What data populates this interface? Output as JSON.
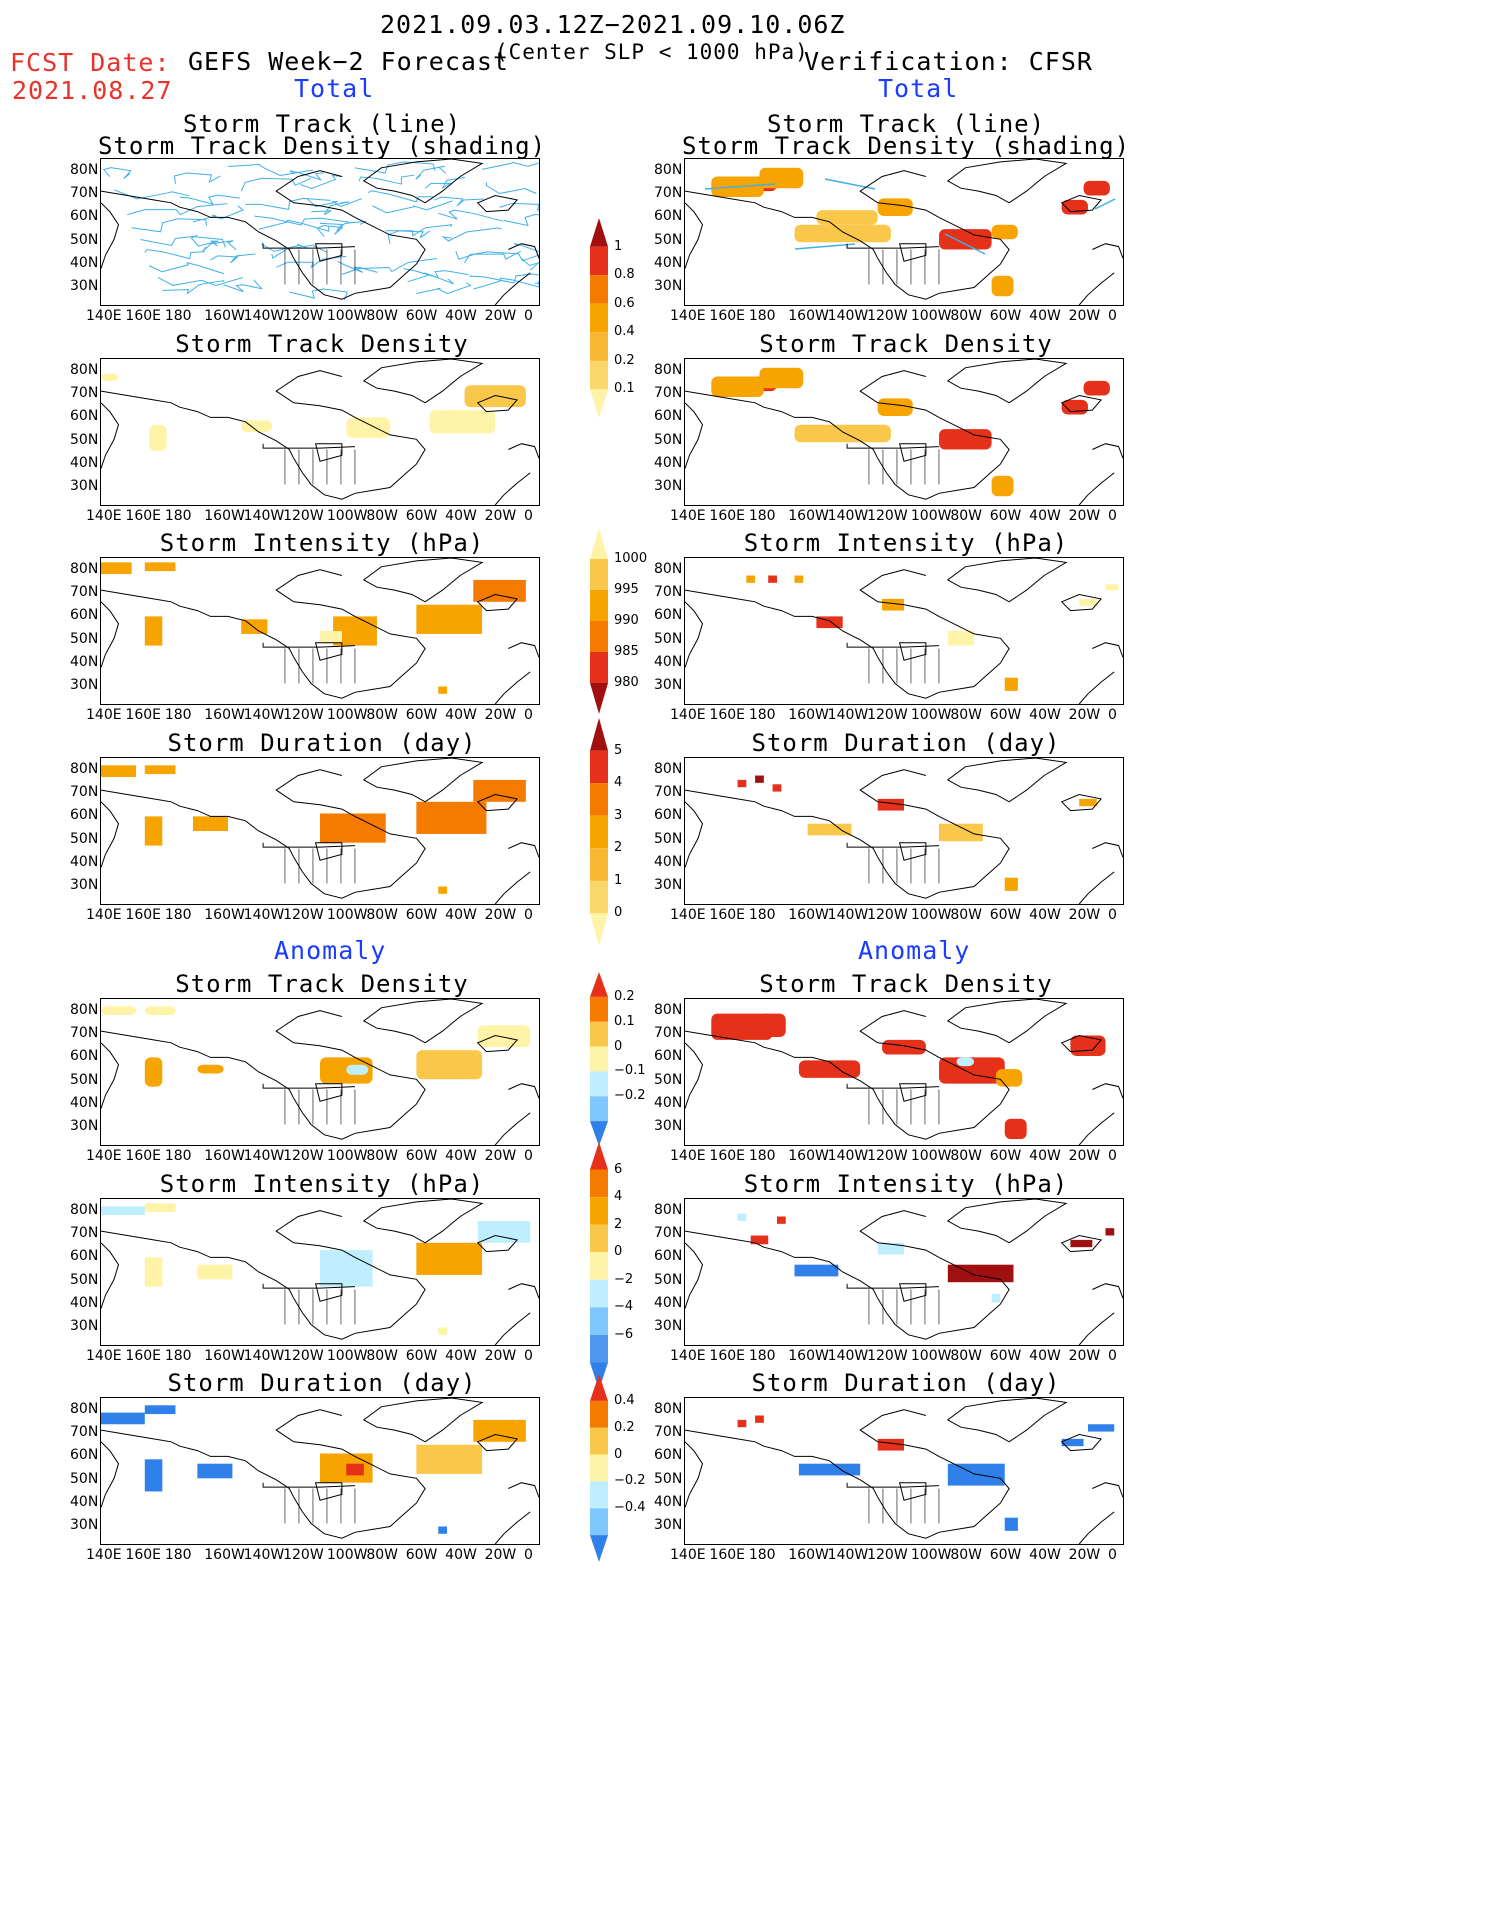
{
  "header": {
    "date_range": "2021.09.03.12Z−2021.09.10.06Z",
    "subtitle": "(Center SLP < 1000 hPa)",
    "fcst_label": "FCST Date:",
    "fcst_date": "2021.08.27",
    "left_title": "GEFS Week−2 Forecast",
    "right_title": "Verification: CFSR"
  },
  "sections": {
    "total": "Total",
    "anomaly": "Anomaly"
  },
  "panel_titles": {
    "track_line": "Storm Track (line)",
    "track_shading": "Storm Track Density (shading)",
    "density": "Storm Track Density",
    "intensity": "Storm Intensity (hPa)",
    "duration": "Storm Duration (day)"
  },
  "axes": {
    "lon": [
      "140E",
      "160E",
      "180",
      "160W",
      "140W",
      "120W",
      "100W",
      "80W",
      "60W",
      "40W",
      "20W",
      "0"
    ],
    "lat": [
      "80N",
      "70N",
      "60N",
      "50N",
      "40N",
      "30N"
    ]
  },
  "colorbars": {
    "density_total": [
      "1",
      "0.8",
      "0.6",
      "0.4",
      "0.2",
      "0.1"
    ],
    "intensity_total": [
      "1000",
      "995",
      "990",
      "985",
      "980"
    ],
    "duration_total": [
      "5",
      "4",
      "3",
      "2",
      "1",
      "0"
    ],
    "density_anom": [
      "0.2",
      "0.1",
      "0",
      "−0.1",
      "−0.2"
    ],
    "intensity_anom": [
      "6",
      "4",
      "2",
      "0",
      "−2",
      "−4",
      "−6"
    ],
    "duration_anom": [
      "0.4",
      "0.2",
      "0",
      "−0.2",
      "−0.4"
    ]
  },
  "colors": {
    "title_red": "#e8332a",
    "section_blue": "#1a3cff",
    "track_line": "#3fb0e8",
    "pale": "#fff3a8",
    "light_orange": "#f9c84a",
    "orange": "#f7a400",
    "dark_orange": "#f47a00",
    "red": "#e5301a",
    "dark_red": "#a01010",
    "light_blue": "#bfeeff",
    "mid_blue": "#7ec8ff",
    "blue": "#2f80e8"
  }
}
